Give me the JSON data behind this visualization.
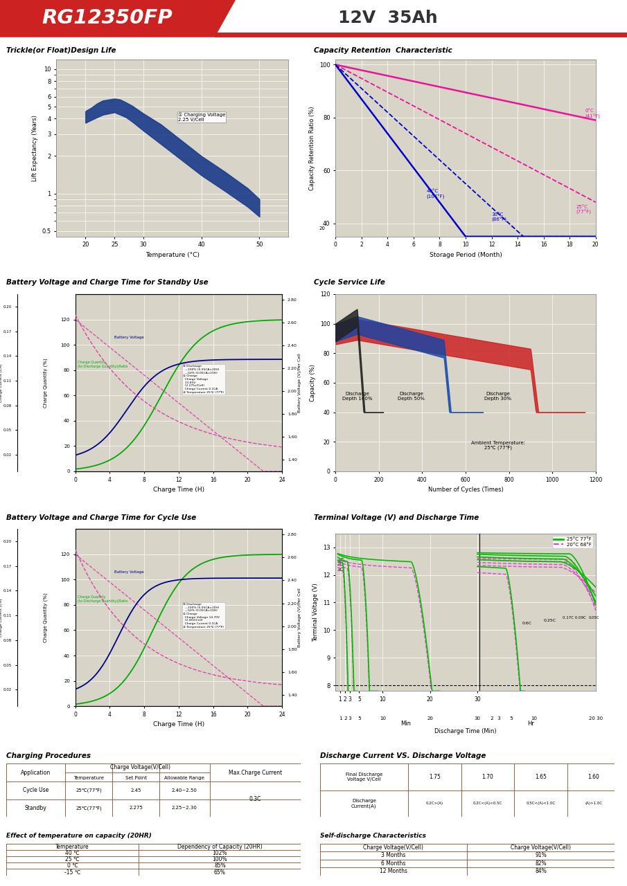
{
  "title_model": "RG12350FP",
  "title_spec": "12V  35Ah",
  "header_bg": "#cc2222",
  "paper_bg": "#ffffff",
  "grid_bg": "#d8d4c8",
  "plot1_title": "Trickle(or Float)Design Life",
  "plot1_xlabel": "Temperature (°C)",
  "plot1_ylabel": "Lift Expectancy (Years)",
  "plot2_title": "Capacity Retention  Characteristic",
  "plot2_xlabel": "Storage Period (Month)",
  "plot2_ylabel": "Capacity Retention Ratio (%)",
  "plot3_title": "Battery Voltage and Charge Time for Standby Use",
  "plot3_xlabel": "Charge Time (H)",
  "plot4_title": "Cycle Service Life",
  "plot4_xlabel": "Number of Cycles (Times)",
  "plot4_ylabel": "Capacity (%)",
  "plot5_title": "Battery Voltage and Charge Time for Cycle Use",
  "plot5_xlabel": "Charge Time (H)",
  "plot6_title": "Terminal Voltage (V) and Discharge Time",
  "plot6_xlabel": "Discharge Time (Min)",
  "plot6_ylabel": "Terminal Voltage (V)",
  "charge_table_title": "Charging Procedures",
  "discharge_vs_title": "Discharge Current VS. Discharge Voltage",
  "temp_effect_title": "Effect of temperature on capacity (20HR)",
  "self_discharge_title": "Self-discharge Characteristics",
  "charge_rows": [
    [
      "Cycle Use",
      "25℃(77℉)",
      "2.45",
      "2.40~2.50",
      "0.3C"
    ],
    [
      "Standby",
      "25℃(77℉)",
      "2.275",
      "2.25~2.30",
      ""
    ]
  ],
  "dv_row1": [
    "1.75",
    "1.70",
    "1.65",
    "1.60"
  ],
  "dv_row2": [
    "0.2C>(A)",
    "0.2C<(A)<0.5C",
    "0.5C<(A)<1.0C",
    "(A)>1.0C"
  ],
  "temp_rows": [
    [
      "40 ℃",
      "102%"
    ],
    [
      "25 ℃",
      "100%"
    ],
    [
      "0 ℃",
      "85%"
    ],
    [
      "-15 ℃",
      "65%"
    ]
  ],
  "sd_rows": [
    [
      "3 Months",
      "91%"
    ],
    [
      "6 Months",
      "82%"
    ],
    [
      "12 Months",
      "84%"
    ]
  ],
  "footer_color": "#cc2222"
}
